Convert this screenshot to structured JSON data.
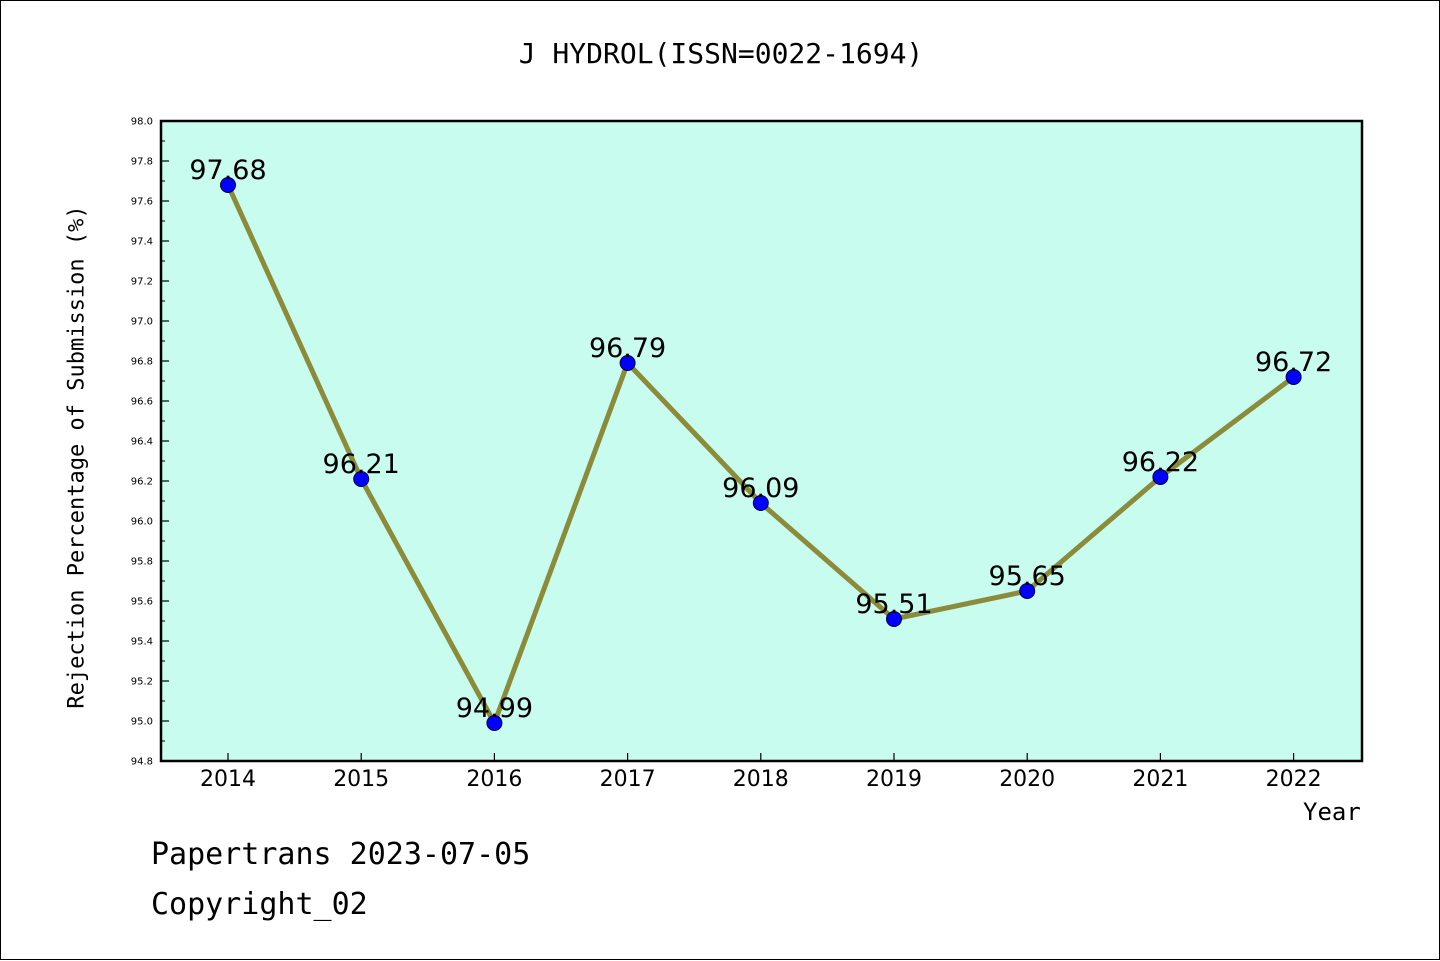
{
  "chart_data": {
    "type": "line",
    "title": "J HYDROL(ISSN=0022-1694)",
    "xlabel": "Year",
    "ylabel": "Rejection Percentage of Submission (%)",
    "categories": [
      "2014",
      "2015",
      "2016",
      "2017",
      "2018",
      "2019",
      "2020",
      "2021",
      "2022"
    ],
    "series": [
      {
        "values": [
          97.68,
          96.21,
          94.99,
          96.79,
          96.09,
          95.51,
          95.65,
          96.22,
          96.72
        ],
        "data_labels": [
          "97.68",
          "96.21",
          "94.99",
          "96.79",
          "96.09",
          "95.51",
          "95.65",
          "96.22",
          "96.72"
        ]
      }
    ],
    "ylim": [
      94.8,
      98.0
    ],
    "y_ticks": [
      "94.8",
      "95.0",
      "95.2",
      "95.4",
      "95.6",
      "95.8",
      "96.0",
      "96.2",
      "96.4",
      "96.6",
      "96.8",
      "97.0",
      "97.2",
      "97.4",
      "97.6",
      "97.8",
      "98.0"
    ],
    "grid": false,
    "legend": "none",
    "colors": {
      "plot_background": "#c8fcee",
      "line": "#8b8b3a",
      "marker": "#0000ff"
    }
  },
  "footer": {
    "line1": "Papertrans 2023-07-05",
    "line2": "Copyright_02"
  }
}
